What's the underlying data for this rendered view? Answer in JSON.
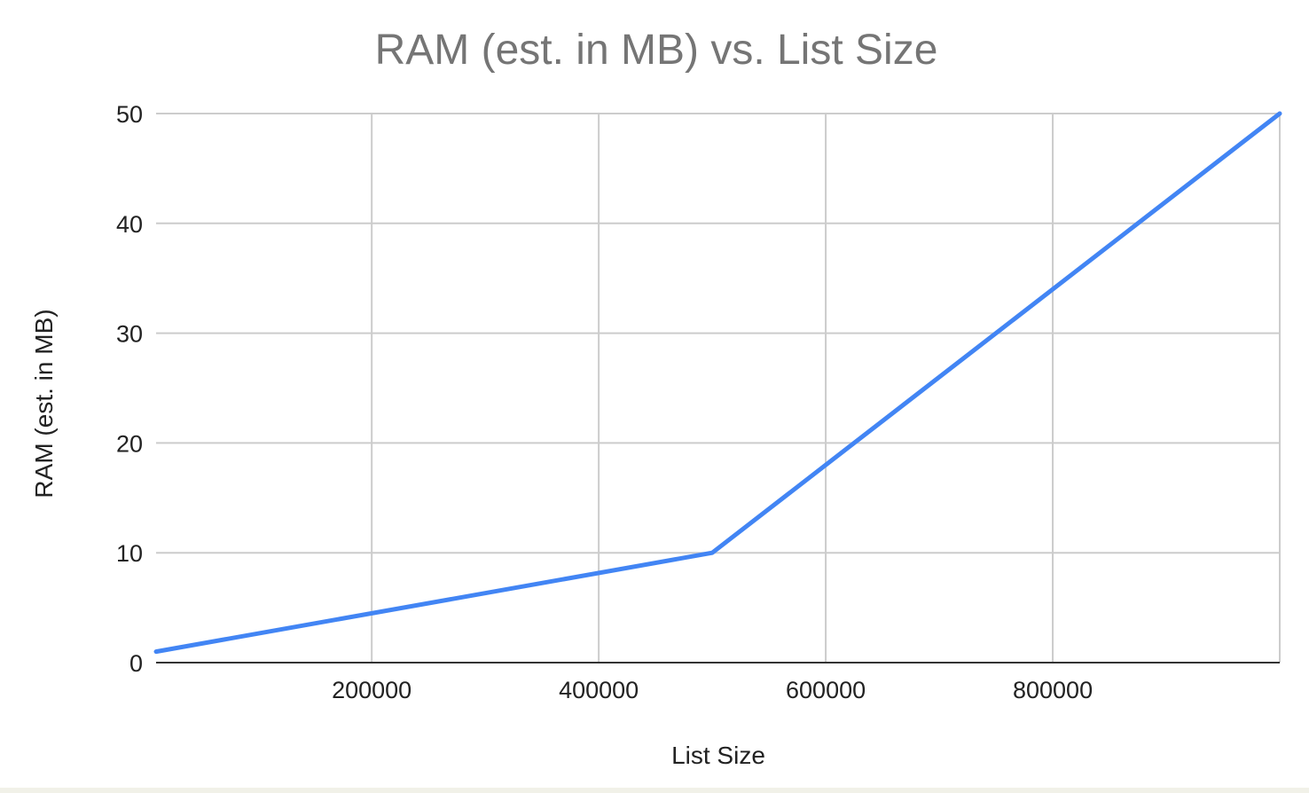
{
  "chart_data": {
    "type": "line",
    "title": "RAM (est. in MB) vs. List Size",
    "xlabel": "List Size",
    "ylabel": "RAM (est. in MB)",
    "xlim": [
      10000,
      1000000
    ],
    "ylim": [
      0,
      50
    ],
    "x_ticks": [
      200000,
      400000,
      600000,
      800000
    ],
    "x_tick_labels": [
      "200000",
      "400000",
      "600000",
      "800000"
    ],
    "y_ticks": [
      0,
      10,
      20,
      30,
      40,
      50
    ],
    "y_tick_labels": [
      "0",
      "10",
      "20",
      "30",
      "40",
      "50"
    ],
    "grid": true,
    "legend": "none",
    "series": [
      {
        "color": "#4285f4",
        "x": [
          10000,
          500000,
          1000000
        ],
        "y": [
          1,
          10,
          50
        ]
      }
    ]
  }
}
